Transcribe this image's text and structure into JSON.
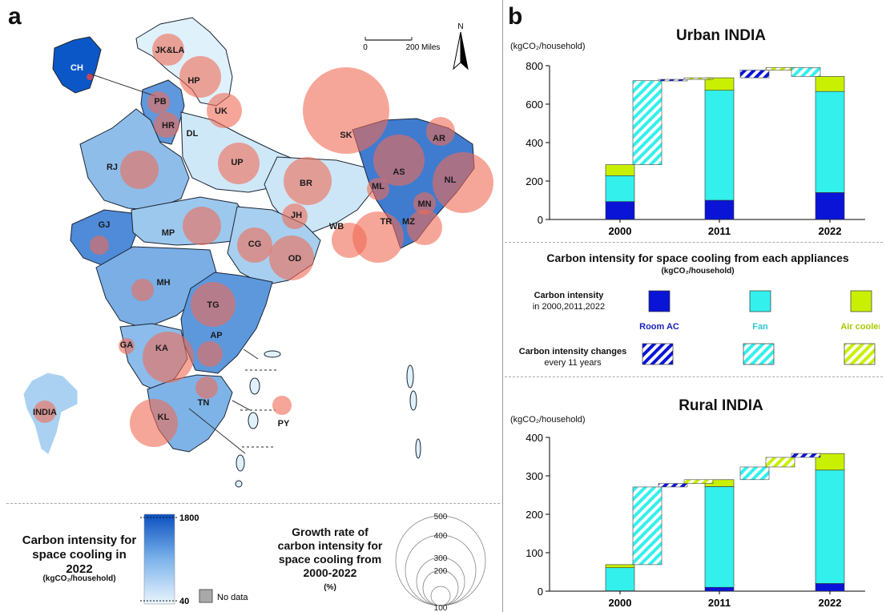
{
  "panel_a": {
    "letter": "a",
    "scale_start": "0",
    "scale_end": "200 Miles",
    "north": "N",
    "states": [
      {
        "code": "JK&LA",
        "growth": "large"
      },
      {
        "code": "HP"
      },
      {
        "code": "PB"
      },
      {
        "code": "HR"
      },
      {
        "code": "DL"
      },
      {
        "code": "UK"
      },
      {
        "code": "RJ"
      },
      {
        "code": "UP"
      },
      {
        "code": "SK"
      },
      {
        "code": "AR"
      },
      {
        "code": "AS"
      },
      {
        "code": "NL"
      },
      {
        "code": "ML"
      },
      {
        "code": "MN"
      },
      {
        "code": "BR"
      },
      {
        "code": "GJ"
      },
      {
        "code": "MP"
      },
      {
        "code": "JH"
      },
      {
        "code": "WB"
      },
      {
        "code": "TR"
      },
      {
        "code": "MZ"
      },
      {
        "code": "CG"
      },
      {
        "code": "OD"
      },
      {
        "code": "MH"
      },
      {
        "code": "TG"
      },
      {
        "code": "GA"
      },
      {
        "code": "KA"
      },
      {
        "code": "AP"
      },
      {
        "code": "TN"
      },
      {
        "code": "KL"
      },
      {
        "code": "PY"
      },
      {
        "code": "CH"
      },
      {
        "code": "INDIA"
      }
    ],
    "legend": {
      "color_title": "Carbon intensity for space cooling in 2022",
      "color_unit": "(kgCO₂/household)",
      "color_max": "1800",
      "color_min": "40",
      "no_data": "No data",
      "size_title": "Growth rate of carbon intensity for space cooling from 2000-2022",
      "size_unit": "(%)",
      "size_values": [
        "500",
        "400",
        "300",
        "200",
        "100"
      ]
    }
  },
  "panel_b": {
    "letter": "b",
    "urban_title": "Urban INDIA",
    "rural_title": "Rural INDIA",
    "unit": "(kgCO₂/household)",
    "legend_title": "Carbon intensity for space cooling from each appliances",
    "legend_unit": "(kgCO₂/household)",
    "legend_row1": "Carbon intensity",
    "legend_row1b": "in 2000,2011,2022",
    "legend_row2": "Carbon intensity changes",
    "legend_row2b": "every 11 years",
    "appliances": [
      {
        "name": "Room AC",
        "color": "#0a14d6"
      },
      {
        "name": "Fan",
        "color": "#33f0ec"
      },
      {
        "name": "Air cooler",
        "color": "#c9f000"
      }
    ]
  },
  "chart_data": [
    {
      "type": "bar",
      "title": "Urban INDIA",
      "ylabel": "(kgCO₂/household)",
      "categories": [
        "2000",
        "2011",
        "2022"
      ],
      "ylim": [
        0,
        800
      ],
      "yticks": [
        "0",
        "200",
        "400",
        "600",
        "800"
      ],
      "series": [
        {
          "name": "Room AC",
          "values": [
            93,
            100,
            140
          ]
        },
        {
          "name": "Fan",
          "values": [
            135,
            572,
            526
          ]
        },
        {
          "name": "Air cooler",
          "values": [
            57,
            65,
            78
          ]
        }
      ],
      "changes": [
        {
          "period": "2000-2011",
          "appliance": "Fan",
          "from": 285,
          "to": 722
        },
        {
          "period": "2000-2011",
          "appliance": "Room AC",
          "from": 722,
          "to": 729
        },
        {
          "period": "2000-2011",
          "appliance": "Air cooler",
          "from": 729,
          "to": 737
        },
        {
          "period": "2011-2022",
          "appliance": "Room AC",
          "from": 737,
          "to": 777
        },
        {
          "period": "2011-2022",
          "appliance": "Air cooler",
          "from": 777,
          "to": 790
        },
        {
          "period": "2011-2022",
          "appliance": "Fan",
          "from": 790,
          "to": 744
        }
      ]
    },
    {
      "type": "bar",
      "title": "Rural INDIA",
      "ylabel": "(kgCO₂/household)",
      "categories": [
        "2000",
        "2011",
        "2022"
      ],
      "ylim": [
        0,
        400
      ],
      "yticks": [
        "0",
        "100",
        "200",
        "300",
        "400"
      ],
      "series": [
        {
          "name": "Room AC",
          "values": [
            1,
            10,
            20
          ]
        },
        {
          "name": "Fan",
          "values": [
            60,
            262,
            295
          ]
        },
        {
          "name": "Air cooler",
          "values": [
            8,
            18,
            43
          ]
        }
      ],
      "changes": [
        {
          "period": "2000-2011",
          "appliance": "Fan",
          "from": 69,
          "to": 271
        },
        {
          "period": "2000-2011",
          "appliance": "Room AC",
          "from": 271,
          "to": 280
        },
        {
          "period": "2000-2011",
          "appliance": "Air cooler",
          "from": 280,
          "to": 290
        },
        {
          "period": "2011-2022",
          "appliance": "Fan",
          "from": 290,
          "to": 323
        },
        {
          "period": "2011-2022",
          "appliance": "Air cooler",
          "from": 323,
          "to": 348
        },
        {
          "period": "2011-2022",
          "appliance": "Room AC",
          "from": 348,
          "to": 358
        }
      ]
    }
  ]
}
